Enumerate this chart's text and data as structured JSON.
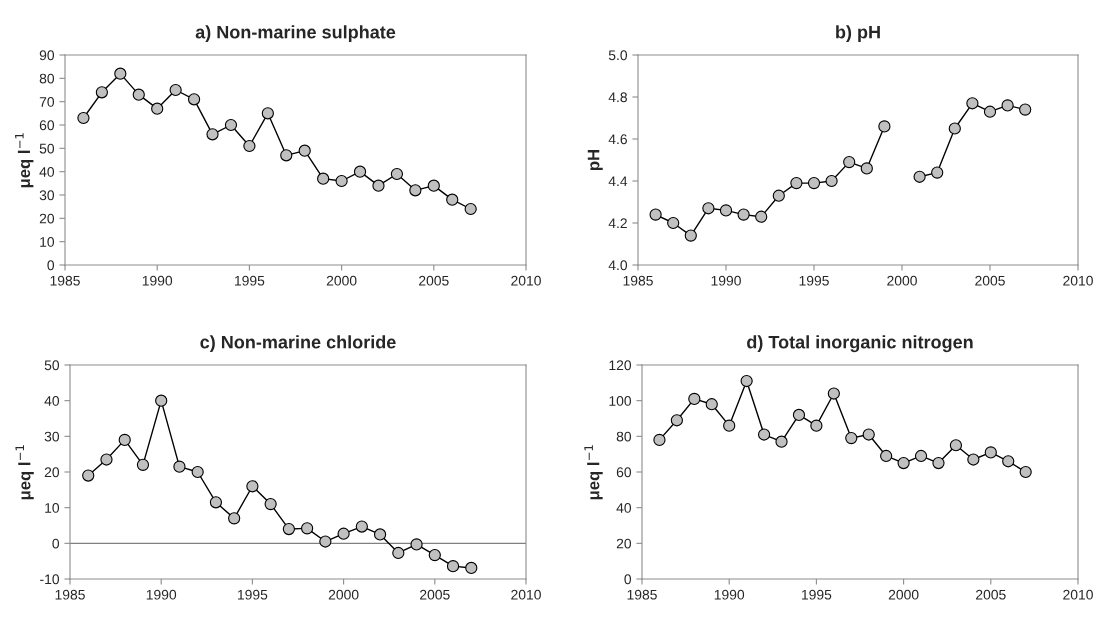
{
  "chart_data": [
    {
      "type": "line",
      "title": "a) Non-marine sulphate",
      "ylabel": "μeq l$^{−1}$",
      "x": [
        1986,
        1987,
        1988,
        1989,
        1990,
        1991,
        1992,
        1993,
        1994,
        1995,
        1996,
        1997,
        1998,
        1999,
        2000,
        2001,
        2002,
        2003,
        2004,
        2005,
        2006,
        2007
      ],
      "series": [
        {
          "color": "#c0c0c0",
          "values": [
            63,
            74,
            82,
            73,
            67,
            75,
            71,
            56,
            60,
            51,
            65,
            47,
            49,
            37,
            36,
            40,
            34,
            39,
            32,
            34,
            28,
            24
          ]
        }
      ],
      "xlim": [
        1985,
        2010
      ],
      "xticks": [
        1985,
        1990,
        1995,
        2000,
        2005,
        2010
      ],
      "ylim": [
        0,
        90
      ],
      "yticks": [
        0,
        10,
        20,
        30,
        40,
        50,
        60,
        70,
        80,
        90
      ],
      "grid": false,
      "legend": false,
      "marker": "circle",
      "line_style": "solid"
    },
    {
      "type": "line",
      "title": "b) pH",
      "ylabel": "pH",
      "x": [
        1986,
        1987,
        1988,
        1989,
        1990,
        1991,
        1992,
        1993,
        1994,
        1995,
        1996,
        1997,
        1998,
        1999,
        2000,
        2001,
        2002,
        2003,
        2004,
        2005,
        2006,
        2007
      ],
      "series": [
        {
          "color": "#c0c0c0",
          "values": [
            4.24,
            4.2,
            4.14,
            4.27,
            4.26,
            4.24,
            4.23,
            4.33,
            4.39,
            4.39,
            4.4,
            4.49,
            4.46,
            4.66,
            null,
            4.42,
            4.44,
            4.65,
            4.77,
            4.73,
            4.76,
            4.74
          ]
        }
      ],
      "xlim": [
        1985,
        2010
      ],
      "xticks": [
        1985,
        1990,
        1995,
        2000,
        2005,
        2010
      ],
      "ylim": [
        4.0,
        5.0
      ],
      "yticks": [
        {
          "value": 4.0,
          "label": "4.0"
        },
        {
          "value": 4.2,
          "label": "4.2"
        },
        {
          "value": 4.4,
          "label": "4.4"
        },
        {
          "value": 4.6,
          "label": "4.6"
        },
        {
          "value": 4.8,
          "label": "4.8"
        },
        {
          "value": 5.0,
          "label": "5.0"
        }
      ],
      "grid": false,
      "legend": false,
      "marker": "circle",
      "line_style": "solid"
    },
    {
      "type": "line",
      "title": "c) Non-marine chloride",
      "ylabel": "μeq l$^{−1}$",
      "x": [
        1986,
        1987,
        1988,
        1989,
        1990,
        1991,
        1992,
        1993,
        1994,
        1995,
        1996,
        1997,
        1998,
        1999,
        2000,
        2001,
        2002,
        2003,
        2004,
        2005,
        2006,
        2007
      ],
      "series": [
        {
          "color": "#c0c0c0",
          "values": [
            19,
            23.5,
            29,
            22,
            40,
            21.5,
            20,
            11.5,
            7,
            16,
            11,
            4,
            4.2,
            0.5,
            2.7,
            4.7,
            2.5,
            -2.7,
            -0.3,
            -3.3,
            -6.4,
            -6.9
          ]
        }
      ],
      "xlim": [
        1985,
        2010
      ],
      "xticks": [
        1985,
        1990,
        1995,
        2000,
        2005,
        2010
      ],
      "ylim": [
        -10,
        50
      ],
      "yticks": [
        -10,
        0,
        10,
        20,
        30,
        40,
        50
      ],
      "ref_lines": [
        {
          "axis": "y",
          "value": 0,
          "color": "#808080"
        }
      ],
      "grid": false,
      "legend": false,
      "marker": "circle",
      "line_style": "solid"
    },
    {
      "type": "line",
      "title": "d) Total inorganic nitrogen",
      "ylabel": "μeq l$^{−1}$",
      "x": [
        1986,
        1987,
        1988,
        1989,
        1990,
        1991,
        1992,
        1993,
        1994,
        1995,
        1996,
        1997,
        1998,
        1999,
        2000,
        2001,
        2002,
        2003,
        2004,
        2005,
        2006,
        2007
      ],
      "series": [
        {
          "color": "#c0c0c0",
          "values": [
            78,
            89,
            101,
            98,
            86,
            111,
            81,
            77,
            92,
            86,
            104,
            79,
            81,
            69,
            65,
            69,
            65,
            75,
            67,
            71,
            66,
            60
          ]
        }
      ],
      "xlim": [
        1985,
        2010
      ],
      "xticks": [
        1985,
        1990,
        1995,
        2000,
        2005,
        2010
      ],
      "ylim": [
        0,
        120
      ],
      "yticks": [
        0,
        20,
        40,
        60,
        80,
        100,
        120
      ],
      "grid": false,
      "legend": false,
      "marker": "circle",
      "line_style": "solid"
    }
  ]
}
